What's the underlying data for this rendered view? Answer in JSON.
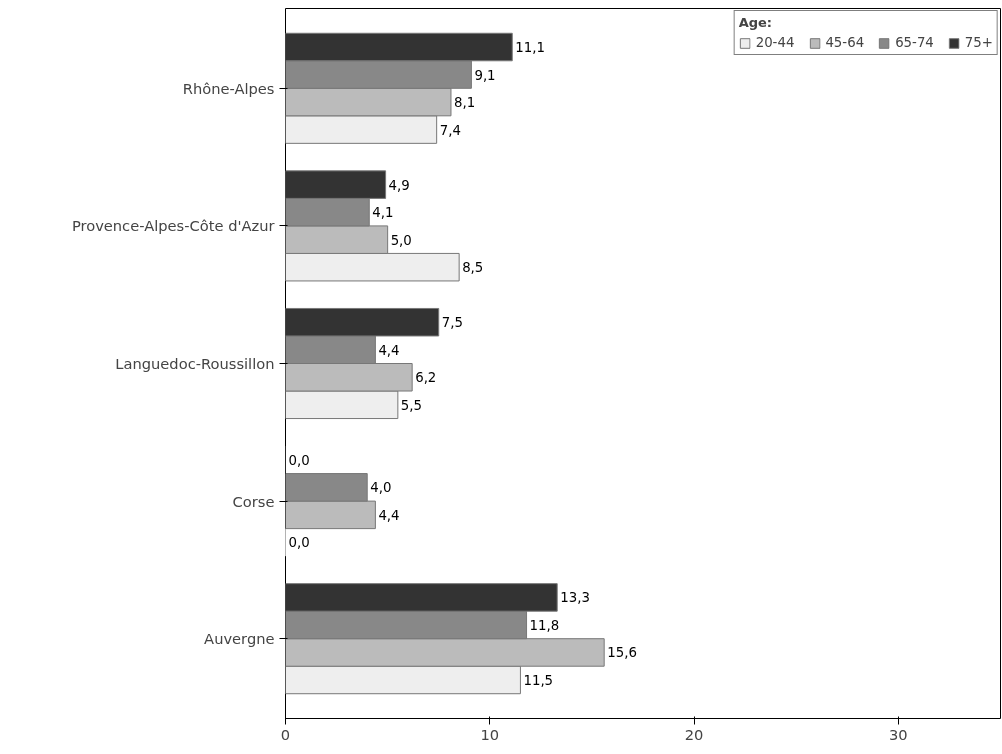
{
  "chart_data": {
    "type": "bar",
    "orientation": "horizontal",
    "legend_title": "Age:",
    "legend": "top right",
    "grid": false,
    "categories": [
      "Rhône-Alpes",
      "Provence-Alpes-Côte d'Azur",
      "Languedoc-Roussillon",
      "Corse",
      "Auvergne"
    ],
    "series": [
      {
        "name": "20-44",
        "color": "#eeeeee",
        "values": [
          7.4,
          8.5,
          5.5,
          0.0,
          11.5
        ],
        "value_labels": [
          "7,4",
          "8,5",
          "5,5",
          "0,0",
          "11,5"
        ]
      },
      {
        "name": "45-64",
        "color": "#bbbbbb",
        "values": [
          8.1,
          5.0,
          6.2,
          4.4,
          15.6
        ],
        "value_labels": [
          "8,1",
          "5,0",
          "6,2",
          "4,4",
          "15,6"
        ]
      },
      {
        "name": "65-74",
        "color": "#888888",
        "values": [
          9.1,
          4.1,
          4.4,
          4.0,
          11.8
        ],
        "value_labels": [
          "9,1",
          "4,1",
          "4,4",
          "4,0",
          "11,8"
        ]
      },
      {
        "name": "75+",
        "color": "#333333",
        "values": [
          11.1,
          4.9,
          7.5,
          0.0,
          13.3
        ],
        "value_labels": [
          "11,1",
          "4,9",
          "7,5",
          "0,0",
          "13,3"
        ]
      }
    ],
    "xlim": [
      0,
      35
    ],
    "xticks": [
      0,
      10,
      20,
      30
    ]
  }
}
